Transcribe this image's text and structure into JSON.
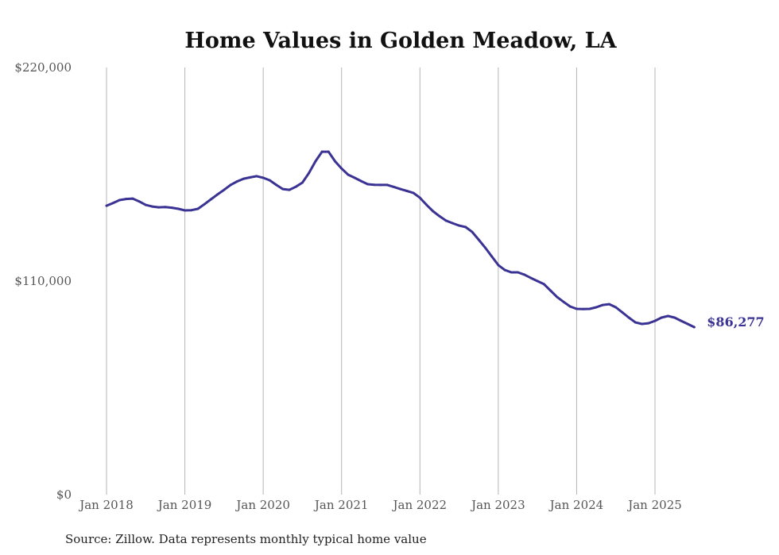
{
  "chart_data": {
    "type": "line",
    "title": "Home Values in Golden Meadow, LA",
    "xlabel": "",
    "ylabel": "",
    "ylim": [
      0,
      220000
    ],
    "y_ticks": [
      {
        "value": 0,
        "label": "$0"
      },
      {
        "value": 110000,
        "label": "$110,000"
      },
      {
        "value": 220000,
        "label": "$220,000"
      }
    ],
    "x_ticks": [
      {
        "month_index": 0,
        "label": "Jan 2018"
      },
      {
        "month_index": 12,
        "label": "Jan 2019"
      },
      {
        "month_index": 24,
        "label": "Jan 2020"
      },
      {
        "month_index": 36,
        "label": "Jan 2021"
      },
      {
        "month_index": 48,
        "label": "Jan 2022"
      },
      {
        "month_index": 60,
        "label": "Jan 2023"
      },
      {
        "month_index": 72,
        "label": "Jan 2024"
      },
      {
        "month_index": 84,
        "label": "Jan 2025"
      }
    ],
    "x_start": "Jan 2018",
    "x_unit": "month",
    "vertical_grid": true,
    "series": [
      {
        "name": "Typical home value",
        "color": "#3a3394",
        "end_label": "$86,277",
        "values": [
          148800,
          150200,
          151700,
          152300,
          152500,
          151000,
          149200,
          148400,
          148000,
          148100,
          147800,
          147200,
          146400,
          146500,
          147200,
          149600,
          152100,
          154600,
          157000,
          159500,
          161300,
          162700,
          163400,
          164000,
          163200,
          161900,
          159500,
          157400,
          157000,
          158600,
          160700,
          165600,
          171700,
          176600,
          176600,
          171700,
          168000,
          164800,
          163200,
          161500,
          159900,
          159600,
          159500,
          159500,
          158500,
          157400,
          156400,
          155400,
          152900,
          149300,
          146000,
          143400,
          141100,
          139800,
          138600,
          137800,
          135300,
          131300,
          127200,
          122700,
          118200,
          115700,
          114500,
          114500,
          113300,
          111600,
          110000,
          108400,
          105100,
          101800,
          99300,
          96900,
          95700,
          95600,
          95700,
          96500,
          97700,
          98100,
          96500,
          93900,
          91200,
          88700,
          87900,
          88300,
          89500,
          91200,
          92000,
          91200,
          89500,
          87900,
          86277
        ]
      }
    ],
    "source": "Source: Zillow. Data represents monthly typical home value"
  }
}
